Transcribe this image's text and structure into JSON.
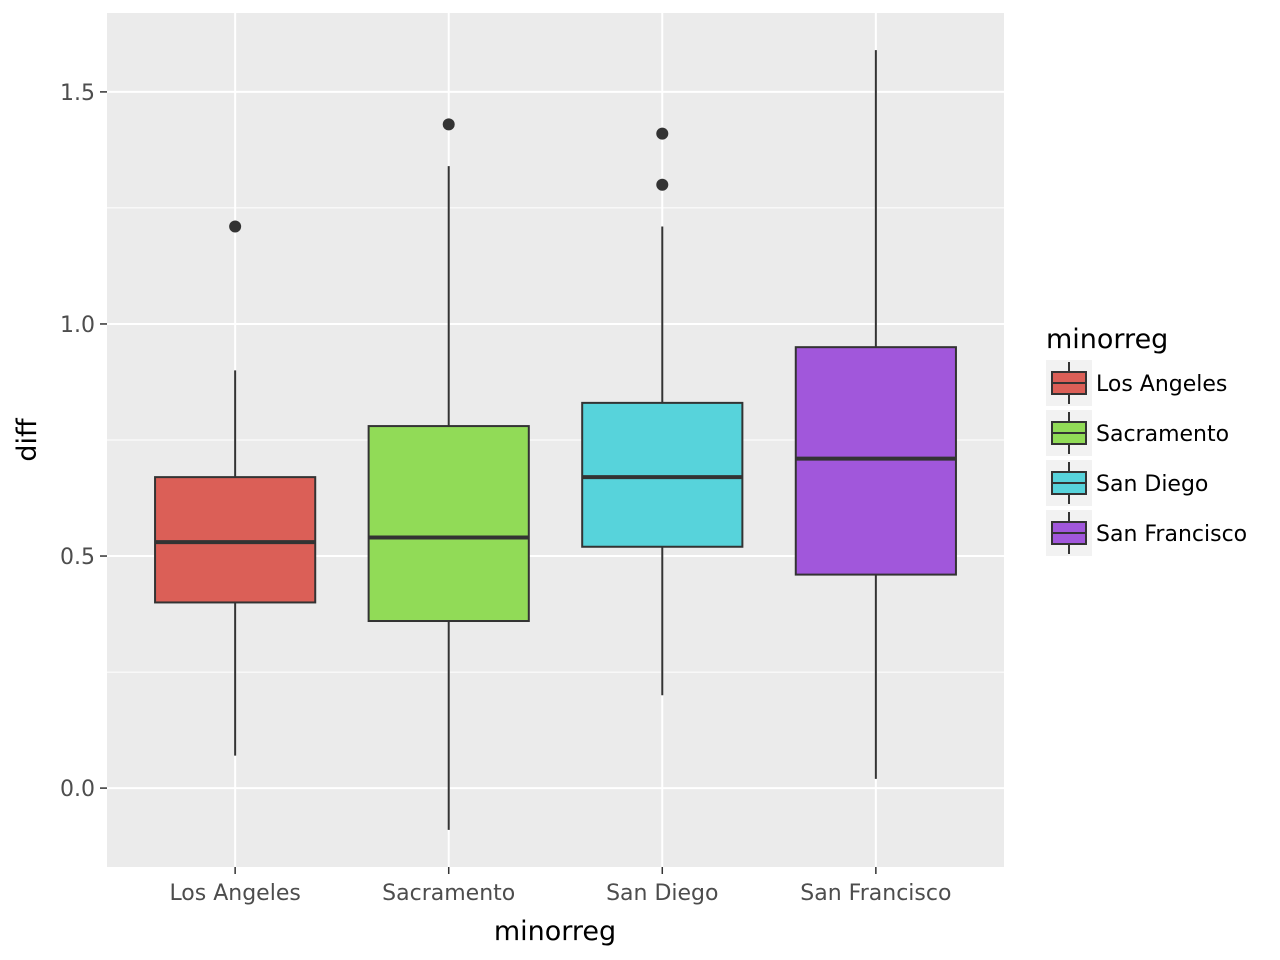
{
  "chart_data": {
    "type": "boxplot",
    "title": "",
    "xlabel": "minorreg",
    "ylabel": "diff",
    "ylim": [
      -0.17,
      1.67
    ],
    "yticks": [
      0.0,
      0.5,
      1.0,
      1.5
    ],
    "ytick_labels": [
      "0.0",
      "0.5",
      "1.0",
      "1.5"
    ],
    "categories": [
      "Los Angeles",
      "Sacramento",
      "San Diego",
      "San Francisco"
    ],
    "grid": true,
    "legend": {
      "title": "minorreg",
      "position": "right"
    },
    "boxes": [
      {
        "category": "Los Angeles",
        "color": "#db5f57",
        "whisker_low": 0.07,
        "q1": 0.4,
        "median": 0.53,
        "q3": 0.67,
        "whisker_high": 0.9,
        "outliers": [
          1.21
        ]
      },
      {
        "category": "Sacramento",
        "color": "#91db57",
        "whisker_low": -0.09,
        "q1": 0.36,
        "median": 0.54,
        "q3": 0.78,
        "whisker_high": 1.34,
        "outliers": [
          1.43
        ]
      },
      {
        "category": "San Diego",
        "color": "#57d3db",
        "whisker_low": 0.2,
        "q1": 0.52,
        "median": 0.67,
        "q3": 0.83,
        "whisker_high": 1.21,
        "outliers": [
          1.3,
          1.41
        ]
      },
      {
        "category": "San Francisco",
        "color": "#a157db",
        "whisker_low": 0.02,
        "q1": 0.46,
        "median": 0.71,
        "q3": 0.95,
        "whisker_high": 1.59,
        "outliers": []
      }
    ]
  }
}
